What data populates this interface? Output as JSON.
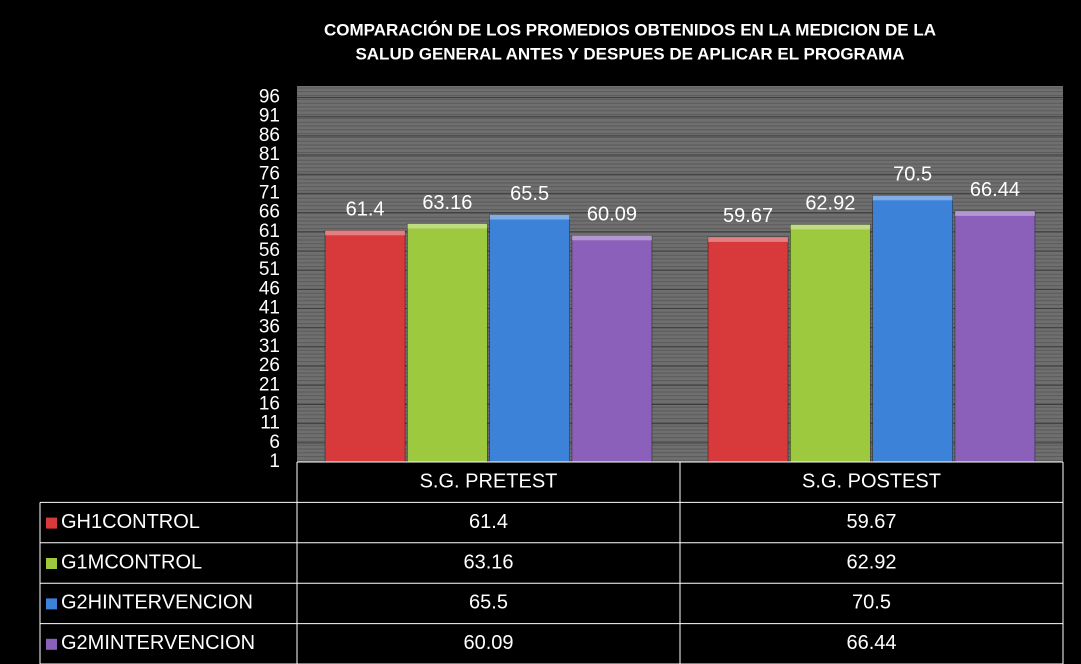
{
  "chart_data": {
    "type": "bar",
    "title": [
      "COMPARACIÓN DE LOS PROMEDIOS OBTENIDOS  EN LA MEDICION DE LA",
      "SALUD GENERAL ANTES Y DESPUES DE APLICAR EL PROGRAMA"
    ],
    "categories": [
      "S.G. PRETEST",
      "S.G. POSTEST"
    ],
    "series": [
      {
        "name": "GH1CONTROL",
        "color": "#d83a3c",
        "values": [
          61.4,
          59.67
        ]
      },
      {
        "name": "G1MCONTROL",
        "color": "#9cc93d",
        "values": [
          63.16,
          62.92
        ]
      },
      {
        "name": "G2HINTERVENCION",
        "color": "#3c82d8",
        "values": [
          65.5,
          70.5
        ]
      },
      {
        "name": "G2MINTERVENCION",
        "color": "#8b60ba",
        "values": [
          60.09,
          66.44
        ]
      }
    ],
    "ylim": [
      1,
      99
    ],
    "yticks": [
      1,
      6,
      11,
      16,
      21,
      26,
      31,
      36,
      41,
      46,
      51,
      56,
      61,
      66,
      71,
      76,
      81,
      86,
      91,
      96
    ],
    "grid": true
  }
}
